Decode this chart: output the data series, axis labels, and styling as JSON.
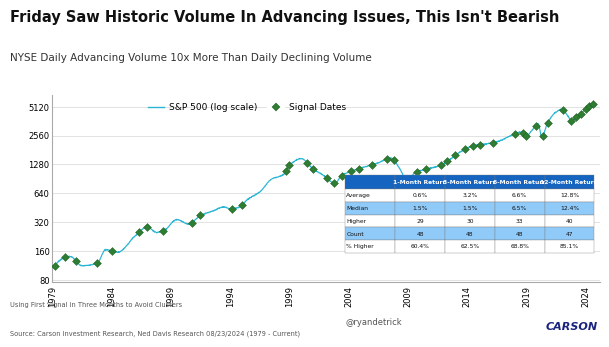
{
  "title": "Friday Saw Historic Volume In Advancing Issues, This Isn't Bearish",
  "subtitle": "NYSE Daily Advancing Volume 10x More Than Daily Declining Volume",
  "title_fontsize": 10.5,
  "subtitle_fontsize": 7.5,
  "bg_color": "#ffffff",
  "line_color": "#29b6d4",
  "signal_color": "#2e7d32",
  "signal_edge_color": "#1b5e20",
  "ylabel_ticks": [
    80,
    160,
    320,
    640,
    1280,
    2560,
    5120
  ],
  "ylabel_labels": [
    "80",
    "160",
    "320",
    "640",
    "1280",
    "2560",
    "5120"
  ],
  "xlim_start": 1979,
  "xlim_end": 2025.2,
  "ylim_log_min": 75,
  "ylim_log_max": 6800,
  "footer_left1": "Using First Signal in Three Months to Avoid Clusters",
  "footer_left2": "Source: Carson Investment Research, Ned Davis Research 08/23/2024 (1979 - Current)",
  "footer_right1": "@ryandetrick",
  "footer_right2": "CARSON",
  "legend_line_label": "S&P 500 (log scale)",
  "legend_signal_label": "Signal Dates",
  "table_header": [
    "",
    "1-Month Return",
    "3-Month Return",
    "6-Month Return",
    "12-Month Return"
  ],
  "table_rows": [
    [
      "Average",
      "0.6%",
      "3.2%",
      "6.6%",
      "12.8%"
    ],
    [
      "Median",
      "1.5%",
      "1.5%",
      "6.5%",
      "12.4%"
    ],
    [
      "Higher",
      "29",
      "30",
      "33",
      "40"
    ],
    [
      "Count",
      "48",
      "48",
      "48",
      "47"
    ],
    [
      "% Higher",
      "60.4%",
      "62.5%",
      "68.8%",
      "85.1%"
    ]
  ],
  "table_header_color": "#1565c0",
  "table_alt_color": "#90caf9",
  "table_white_color": "#ffffff",
  "table_text_color": "#111111",
  "table_header_text_color": "#ffffff",
  "sp500_keypoints": [
    [
      1979.0,
      103
    ],
    [
      1980.5,
      140
    ],
    [
      1981.5,
      112
    ],
    [
      1982.8,
      120
    ],
    [
      1983.5,
      165
    ],
    [
      1984.5,
      155
    ],
    [
      1986.0,
      230
    ],
    [
      1987.0,
      285
    ],
    [
      1987.8,
      250
    ],
    [
      1988.5,
      267
    ],
    [
      1989.5,
      340
    ],
    [
      1990.5,
      305
    ],
    [
      1991.5,
      375
    ],
    [
      1992.5,
      415
    ],
    [
      1993.5,
      460
    ],
    [
      1994.0,
      440
    ],
    [
      1994.8,
      460
    ],
    [
      1995.5,
      555
    ],
    [
      1996.5,
      660
    ],
    [
      1997.5,
      900
    ],
    [
      1998.5,
      1000
    ],
    [
      1999.0,
      1250
    ],
    [
      2000.0,
      1470
    ],
    [
      2001.0,
      1148
    ],
    [
      2002.0,
      960
    ],
    [
      2002.8,
      815
    ],
    [
      2003.5,
      1000
    ],
    [
      2004.5,
      1115
    ],
    [
      2005.5,
      1220
    ],
    [
      2006.5,
      1330
    ],
    [
      2007.5,
      1490
    ],
    [
      2008.5,
      1050
    ],
    [
      2009.0,
      735
    ],
    [
      2009.5,
      1030
    ],
    [
      2010.5,
      1140
    ],
    [
      2011.5,
      1220
    ],
    [
      2012.5,
      1430
    ],
    [
      2013.5,
      1750
    ],
    [
      2014.5,
      2000
    ],
    [
      2015.5,
      2080
    ],
    [
      2016.5,
      2200
    ],
    [
      2017.5,
      2490
    ],
    [
      2018.5,
      2780
    ],
    [
      2019.0,
      2560
    ],
    [
      2019.5,
      2930
    ],
    [
      2020.0,
      3380
    ],
    [
      2020.3,
      2470
    ],
    [
      2020.8,
      3500
    ],
    [
      2021.5,
      4500
    ],
    [
      2022.0,
      4800
    ],
    [
      2022.5,
      4100
    ],
    [
      2022.8,
      3650
    ],
    [
      2023.2,
      3970
    ],
    [
      2023.8,
      4570
    ],
    [
      2024.0,
      4900
    ],
    [
      2024.3,
      5240
    ],
    [
      2024.6,
      5460
    ],
    [
      2024.8,
      5310
    ]
  ],
  "signal_dates": [
    1979.2,
    1980.1,
    1981.0,
    1982.8,
    1984.0,
    1986.3,
    1987.0,
    1988.3,
    1990.8,
    1991.5,
    1994.2,
    1995.0,
    1998.7,
    1999.0,
    2000.5,
    2001.0,
    2002.2,
    2002.8,
    2003.4,
    2004.2,
    2004.9,
    2006.0,
    2007.2,
    2007.8,
    2008.9,
    2009.2,
    2009.8,
    2010.5,
    2011.8,
    2012.3,
    2013.0,
    2013.8,
    2014.5,
    2015.1,
    2016.2,
    2018.0,
    2018.7,
    2019.0,
    2019.8,
    2020.4,
    2020.8,
    2022.1,
    2022.8,
    2023.2,
    2023.6,
    2024.0,
    2024.3,
    2024.6
  ]
}
